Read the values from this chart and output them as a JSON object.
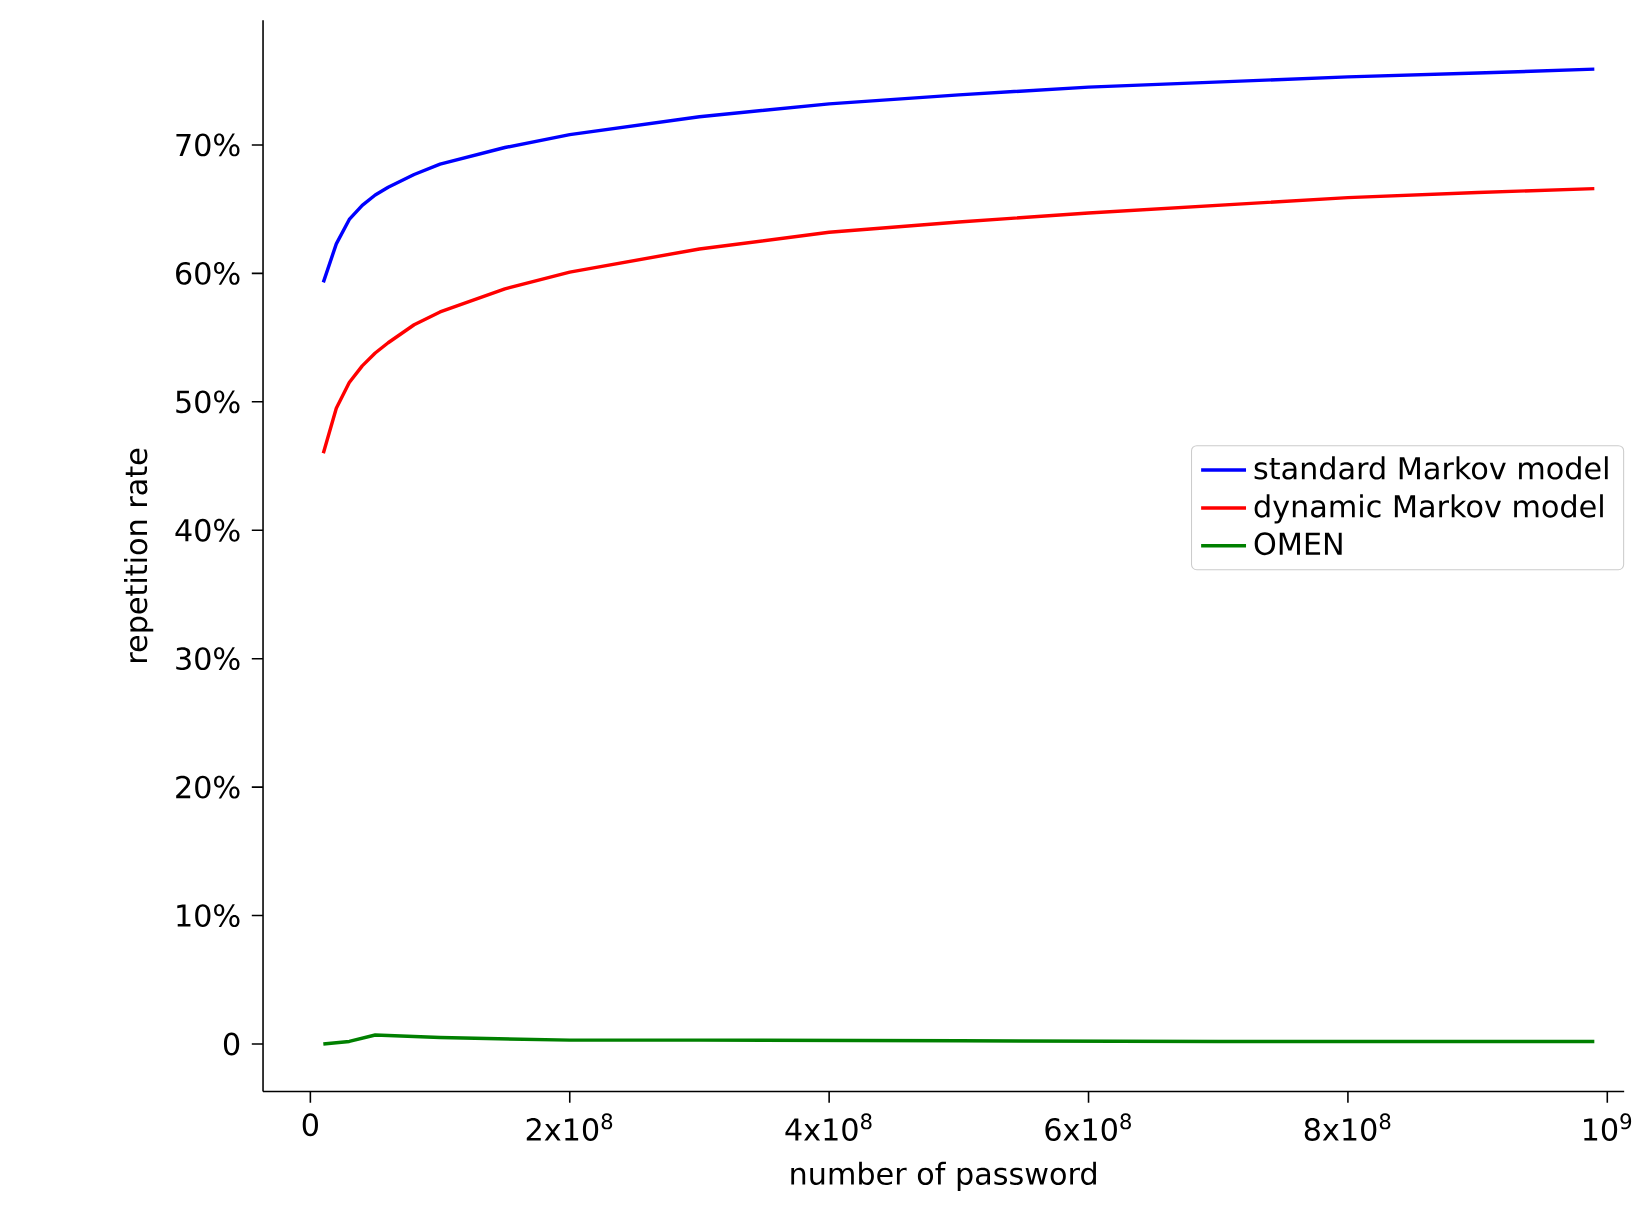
{
  "chart_data": {
    "type": "line",
    "xlabel": "number of password",
    "ylabel": "repetition rate",
    "xlim": [
      -36500000,
      1013000000
    ],
    "ylim": [
      -3.7,
      79.7
    ],
    "xticks": [
      0,
      {
        "value": 200000000,
        "label": "2x10$^{8}$"
      },
      {
        "value": 400000000,
        "label": "4x10$^{8}$"
      },
      {
        "value": 600000000,
        "label": "6x10$^{8}$"
      },
      {
        "value": 800000000,
        "label": "8x10$^{8}$"
      },
      {
        "value": 1000000000,
        "label": "10$^{9}$"
      }
    ],
    "yticks": [
      0,
      {
        "value": 10,
        "label": "10%"
      },
      {
        "value": 20,
        "label": "20%"
      },
      {
        "value": 30,
        "label": "30%"
      },
      {
        "value": 40,
        "label": "40%"
      },
      {
        "value": 50,
        "label": "50%"
      },
      {
        "value": 60,
        "label": "60%"
      },
      {
        "value": 70,
        "label": "70%"
      }
    ],
    "legend": "right",
    "series": [
      {
        "name": "standard Markov model",
        "color": "#0000ff",
        "x": [
          10000000,
          20000000,
          30000000,
          40000000,
          50000000,
          60000000,
          80000000,
          100000000,
          150000000,
          200000000,
          300000000,
          400000000,
          500000000,
          600000000,
          700000000,
          800000000,
          900000000,
          990000000
        ],
        "values": [
          59.3,
          62.3,
          64.2,
          65.3,
          66.1,
          66.7,
          67.7,
          68.5,
          69.8,
          70.8,
          72.2,
          73.2,
          73.9,
          74.5,
          74.9,
          75.3,
          75.6,
          75.9
        ]
      },
      {
        "name": "dynamic Markov model",
        "color": "#ff0000",
        "x": [
          10000000,
          20000000,
          30000000,
          40000000,
          50000000,
          60000000,
          80000000,
          100000000,
          150000000,
          200000000,
          300000000,
          400000000,
          500000000,
          600000000,
          700000000,
          800000000,
          900000000,
          990000000
        ],
        "values": [
          46.0,
          49.5,
          51.5,
          52.8,
          53.8,
          54.6,
          56.0,
          57.0,
          58.8,
          60.1,
          61.9,
          63.2,
          64.0,
          64.7,
          65.3,
          65.9,
          66.3,
          66.6
        ]
      },
      {
        "name": "OMEN",
        "color": "#008000",
        "x": [
          10000000,
          30000000,
          50000000,
          100000000,
          200000000,
          300000000,
          500000000,
          700000000,
          990000000
        ],
        "values": [
          0.0,
          0.2,
          0.7,
          0.5,
          0.3,
          0.3,
          0.25,
          0.2,
          0.2
        ]
      }
    ]
  }
}
